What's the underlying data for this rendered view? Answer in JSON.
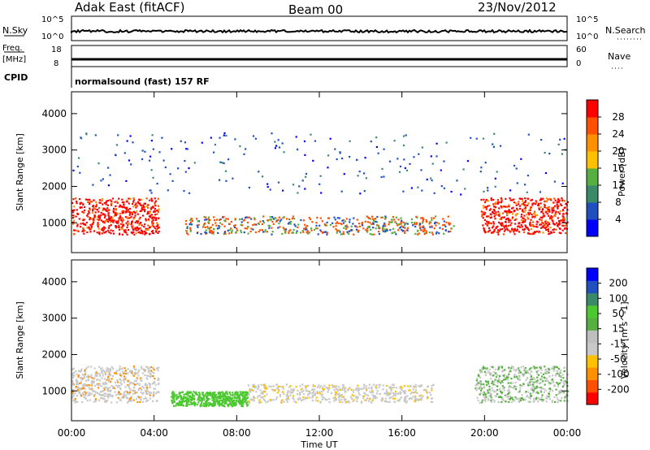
{
  "header": {
    "site": "Adak East (fitACF)",
    "beam": "Beam 00",
    "date": "23/Nov/2012"
  },
  "strips": {
    "nsky": {
      "label": "N.Sky",
      "ticks": [
        "10^5",
        "10^0"
      ],
      "right_label": "N.Search",
      "right_ticks": [
        "10^5",
        "10^0"
      ]
    },
    "freq": {
      "label_top": "Freq.",
      "label_bottom": "[MHz]",
      "ticks": [
        "18",
        "8"
      ],
      "right_label": "Nave",
      "right_ticks": [
        "60",
        "0"
      ]
    },
    "cpid": {
      "label": "CPID",
      "value": "normalsound (fast) 157 RF"
    }
  },
  "colors": {
    "power_scale": [
      "#0000ff",
      "#2050c0",
      "#3a8a6a",
      "#55b040",
      "#ffc000",
      "#ff9000",
      "#ff5000",
      "#ff0000"
    ],
    "velocity_scale": [
      "#ff0000",
      "#ff5000",
      "#ff9000",
      "#ffc000",
      "#c8c8c8",
      "#bebebe",
      "#55b040",
      "#4cc830",
      "#3a8a6a",
      "#2050c0",
      "#0000ff"
    ]
  },
  "chart_data": [
    {
      "type": "heatmap",
      "title": "",
      "xlabel": "Time UT",
      "ylabel": "Slant Range [km]",
      "x_ticks": [
        "00:00",
        "04:00",
        "08:00",
        "12:00",
        "16:00",
        "20:00",
        "00:00"
      ],
      "xlim_hours": [
        0,
        24
      ],
      "y_ticks": [
        1000,
        2000,
        3000,
        4000
      ],
      "ylim": [
        180,
        4600
      ],
      "colorbar": {
        "label": "Power [dB]",
        "ticks": [
          4,
          8,
          12,
          16,
          20,
          24,
          28
        ],
        "range": [
          0,
          32
        ]
      },
      "regions": [
        {
          "name": "night-early",
          "t_start": 0.0,
          "t_end": 4.2,
          "range_low": 700,
          "range_high": 1700,
          "power_db": 28
        },
        {
          "name": "dawn-band",
          "t_start": 5.5,
          "t_end": 18.5,
          "range_low": 700,
          "range_high": 1200,
          "power_db": 18
        },
        {
          "name": "night-late",
          "t_start": 19.8,
          "t_end": 24.0,
          "range_low": 700,
          "range_high": 1700,
          "power_db": 28
        },
        {
          "name": "sporadic-far",
          "t_start": 0.0,
          "t_end": 24.0,
          "range_low": 1800,
          "range_high": 3500,
          "power_db": 8
        }
      ]
    },
    {
      "type": "heatmap",
      "title": "",
      "xlabel": "Time UT",
      "ylabel": "Slant Range [km]",
      "x_ticks": [
        "00:00",
        "04:00",
        "08:00",
        "12:00",
        "16:00",
        "20:00",
        "00:00"
      ],
      "xlim_hours": [
        0,
        24
      ],
      "y_ticks": [
        1000,
        2000,
        3000,
        4000
      ],
      "ylim": [
        180,
        4600
      ],
      "colorbar": {
        "label": "Velocity [m s^-1]",
        "ticks": [
          200,
          100,
          50,
          15,
          -15,
          -50,
          -100,
          -200
        ],
        "range": [
          -250,
          250
        ]
      },
      "regions": [
        {
          "name": "night-early",
          "t_start": 0.0,
          "t_end": 4.2,
          "range_low": 700,
          "range_high": 1700,
          "velocity": 0
        },
        {
          "name": "morning-green",
          "t_start": 4.8,
          "t_end": 8.5,
          "range_low": 600,
          "range_high": 1000,
          "velocity": 50
        },
        {
          "name": "day-grey",
          "t_start": 8.5,
          "t_end": 17.5,
          "range_low": 700,
          "range_high": 1200,
          "velocity": 0
        },
        {
          "name": "night-late",
          "t_start": 19.5,
          "t_end": 24.0,
          "range_low": 700,
          "range_high": 1700,
          "velocity": 15
        }
      ]
    }
  ]
}
